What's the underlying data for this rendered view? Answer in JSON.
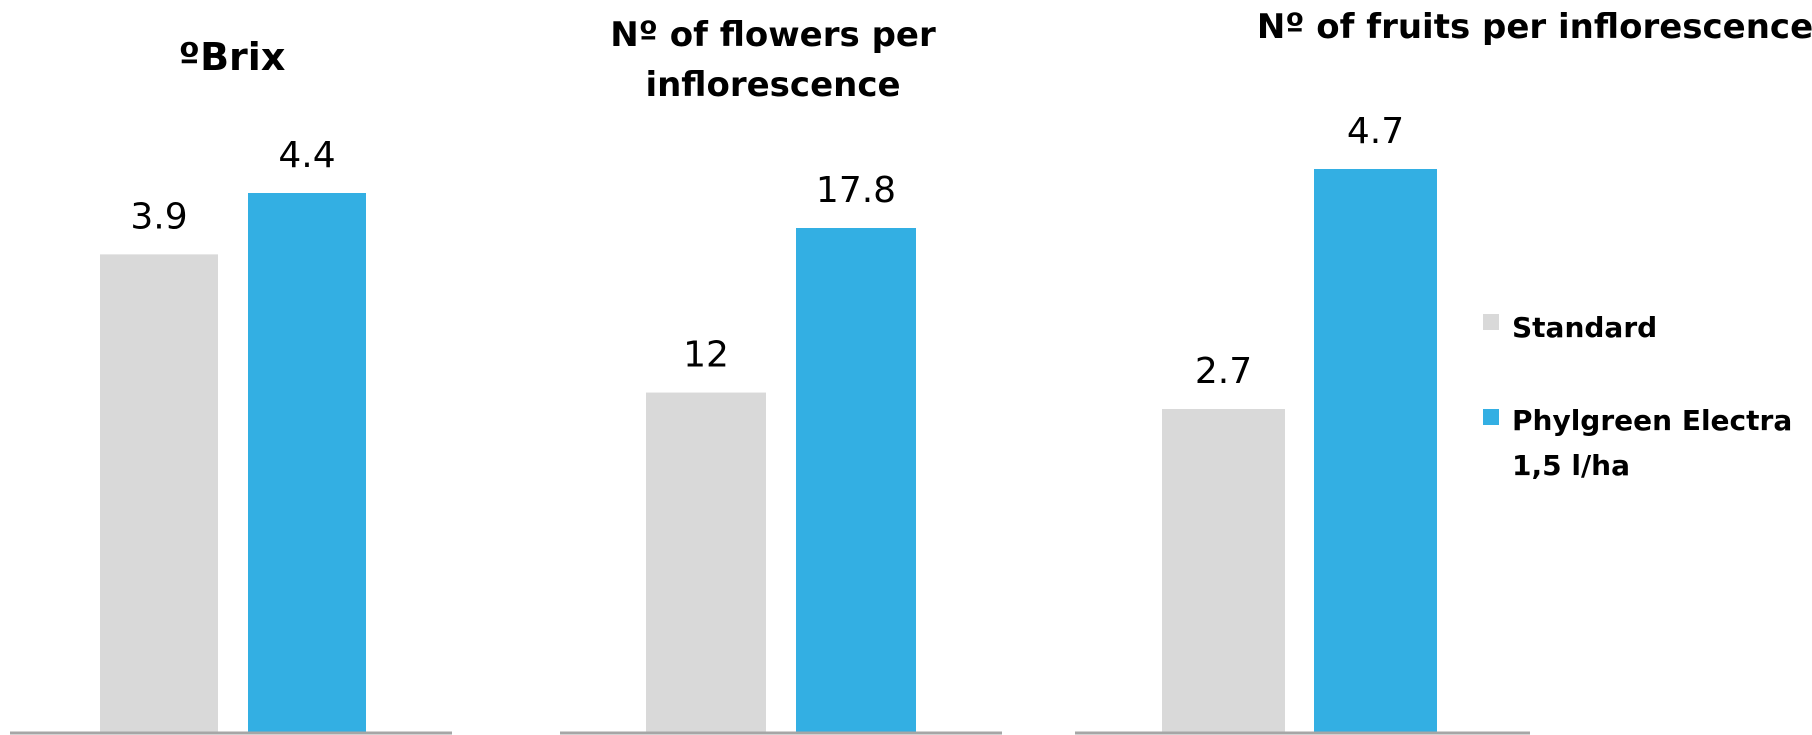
{
  "chart_data": [
    {
      "type": "bar",
      "title": "ºBrix",
      "categories": [
        "Standard",
        "Phylgreen Electra 1,5 l/ha"
      ],
      "values": [
        3.9,
        4.4
      ],
      "data_labels": [
        "3.9",
        "4.4"
      ],
      "xlabel": "",
      "ylabel": "",
      "grid": false
    },
    {
      "type": "bar",
      "title": "Nº of flowers per inflorescence",
      "categories": [
        "Standard",
        "Phylgreen Electra 1,5 l/ha"
      ],
      "values": [
        12,
        17.8
      ],
      "data_labels": [
        "12",
        "17.8"
      ],
      "xlabel": "",
      "ylabel": "",
      "grid": false
    },
    {
      "type": "bar",
      "title": "Nº of fruits per inflorescence",
      "categories": [
        "Standard",
        "Phylgreen Electra 1,5 l/ha"
      ],
      "values": [
        2.7,
        4.7
      ],
      "data_labels": [
        "2.7",
        "4.7"
      ],
      "xlabel": "",
      "ylabel": "",
      "grid": false
    }
  ],
  "legend": {
    "placement": "right",
    "items": [
      {
        "label": "Standard",
        "color": "#d9d9d9"
      },
      {
        "label": "Phylgreen Electra 1,5 l/ha",
        "label_lines": [
          "Phylgreen Electra",
          "1,5 l/ha"
        ],
        "color": "#33afe3"
      }
    ]
  },
  "colors": {
    "standard": "#d9d9d9",
    "phylgreen": "#33afe3",
    "axis": "#a6a6a6"
  }
}
